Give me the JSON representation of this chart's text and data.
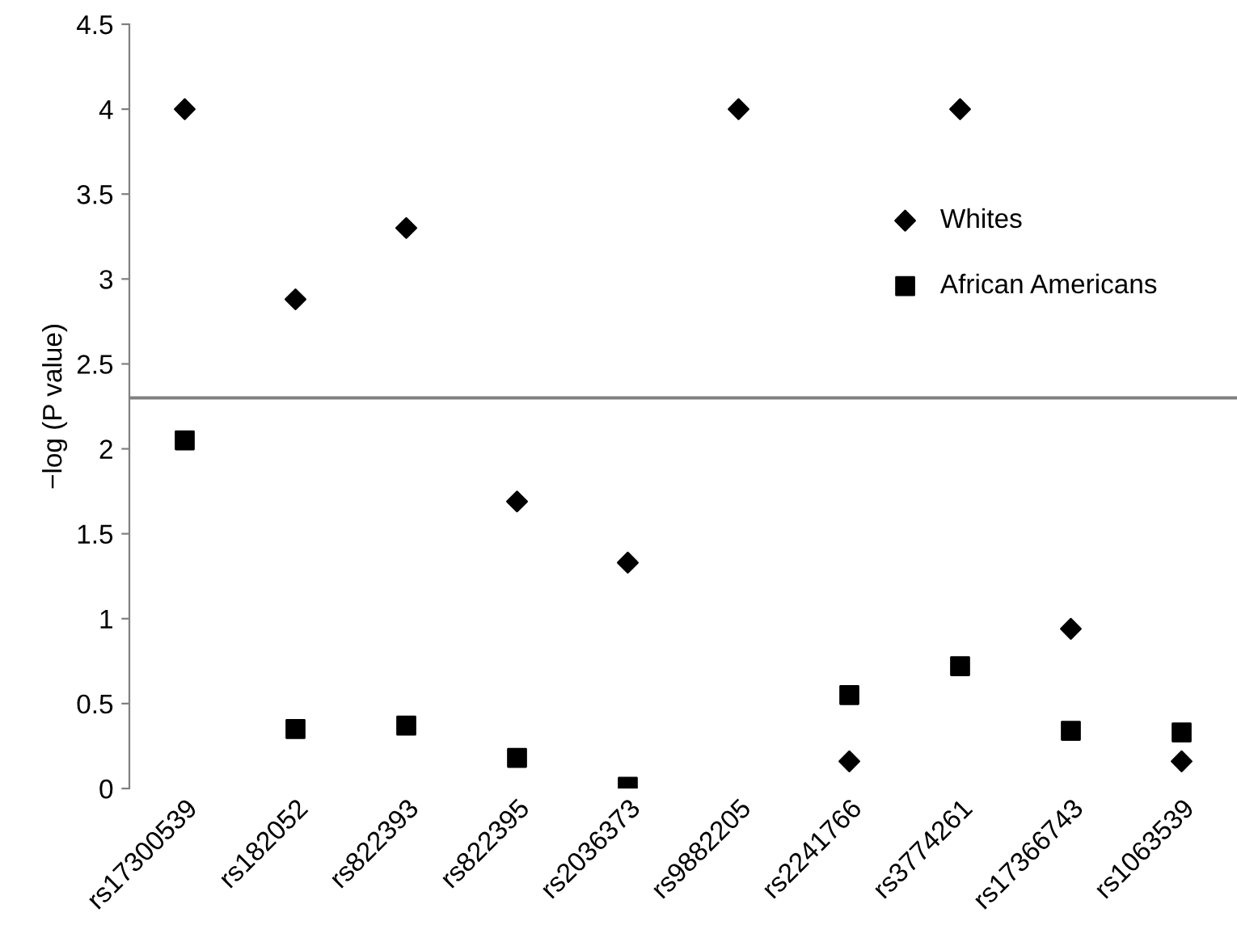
{
  "chart_data": {
    "type": "scatter",
    "ylabel": "−log (P value)",
    "categories": [
      "rs17300539",
      "rs182052",
      "rs822393",
      "rs822395",
      "rs2036373",
      "rs9882205",
      "rs2241766",
      "rs3774261",
      "rs17366743",
      "rs1063539"
    ],
    "series": [
      {
        "name": "Whites",
        "color": "#000000",
        "marker": "diamond",
        "values": [
          4.0,
          2.88,
          3.3,
          1.69,
          1.33,
          4.0,
          0.16,
          4.0,
          0.94,
          0.16
        ]
      },
      {
        "name": "African Americans",
        "color": "#000000",
        "marker": "square",
        "values": [
          2.05,
          0.35,
          0.37,
          0.18,
          0.01,
          null,
          0.55,
          0.72,
          0.34,
          0.33
        ]
      }
    ],
    "ylim": [
      0,
      4.5
    ],
    "yticks": [
      0,
      0.5,
      1,
      1.5,
      2,
      2.5,
      3,
      3.5,
      4,
      4.5
    ],
    "ref_lines": [
      {
        "axis": "y",
        "value": 2.3,
        "color": "#808080"
      }
    ],
    "grid": false,
    "legend": "right"
  }
}
